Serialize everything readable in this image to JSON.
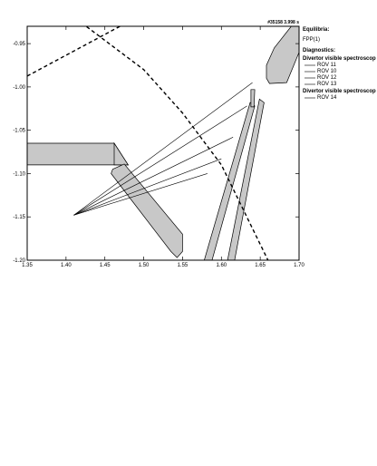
{
  "chart_data": {
    "type": "diagram",
    "shot_label": "#35158 3.998 s",
    "xlim": [
      1.35,
      1.7
    ],
    "ylim": [
      -1.2,
      -0.93
    ],
    "xticks": [
      "1.35",
      "1.40",
      "1.45",
      "1.50",
      "1.55",
      "1.60",
      "1.65",
      "1.70"
    ],
    "yticks": [
      "-0.95",
      "-1.00",
      "-1.05",
      "-1.10",
      "-1.15",
      "-1.20"
    ],
    "legend": {
      "equilibria_heading": "Equilibria:",
      "equilibria_items": [
        "FPP(1)"
      ],
      "diagnostics_heading": "Diagnostics:",
      "groups": [
        {
          "title": "Divertor visible spectroscop",
          "items": [
            "ROV 11",
            "ROV 10",
            "ROV 12",
            "ROV 13"
          ]
        },
        {
          "title": "Divertor visible spectroscop",
          "items": [
            "ROV 14"
          ]
        }
      ]
    },
    "separatrix": [
      [
        [
          1.35,
          -0.9875
        ],
        [
          1.48,
          -0.925
        ]
      ],
      [
        [
          1.42,
          -0.926
        ],
        [
          1.5,
          -0.98
        ],
        [
          1.55,
          -1.03
        ],
        [
          1.6,
          -1.09
        ],
        [
          1.66,
          -1.2
        ]
      ]
    ],
    "sightline_origin": [
      1.41,
      -1.148
    ],
    "sightline_ends": [
      [
        1.64,
        -0.995
      ],
      [
        1.633,
        -1.022
      ],
      [
        1.615,
        -1.058
      ],
      [
        1.6,
        -1.083
      ],
      [
        1.582,
        -1.1
      ]
    ],
    "tiles": [
      [
        [
          1.35,
          -1.065
        ],
        [
          1.462,
          -1.065
        ],
        [
          1.48,
          -1.09
        ],
        [
          1.35,
          -1.09
        ]
      ],
      [
        [
          1.462,
          -1.065
        ],
        [
          1.48,
          -1.09
        ],
        [
          1.462,
          -1.09
        ]
      ],
      [
        [
          1.46,
          -1.095
        ],
        [
          1.475,
          -1.089
        ],
        [
          1.55,
          -1.17
        ],
        [
          1.55,
          -1.19
        ],
        [
          1.543,
          -1.197
        ],
        [
          1.535,
          -1.19
        ],
        [
          1.458,
          -1.1
        ]
      ],
      [
        [
          1.578,
          -1.2
        ],
        [
          1.637,
          -1.018
        ],
        [
          1.643,
          -1.022
        ],
        [
          1.588,
          -1.2
        ]
      ],
      [
        [
          1.608,
          -1.2
        ],
        [
          1.649,
          -1.014
        ],
        [
          1.655,
          -1.018
        ],
        [
          1.617,
          -1.2
        ]
      ],
      [
        [
          1.638,
          -1.003
        ],
        [
          1.643,
          -1.003
        ],
        [
          1.642,
          -1.023
        ],
        [
          1.638,
          -1.023
        ]
      ],
      [
        [
          1.658,
          -0.99
        ],
        [
          1.658,
          -0.975
        ],
        [
          1.668,
          -0.955
        ],
        [
          1.69,
          -0.93
        ],
        [
          1.7,
          -0.93
        ],
        [
          1.7,
          -0.96
        ],
        [
          1.684,
          -0.995
        ],
        [
          1.662,
          -0.996
        ]
      ]
    ]
  }
}
